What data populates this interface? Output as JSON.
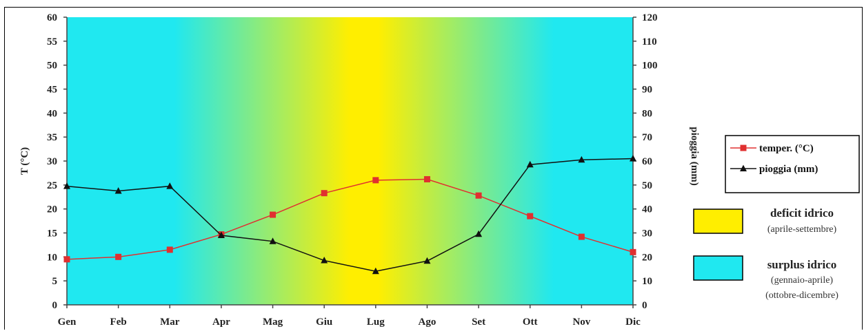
{
  "chart_data": {
    "type": "line",
    "title": "",
    "categories": [
      "Gen",
      "Feb",
      "Mar",
      "Apr",
      "Mag",
      "Giu",
      "Lug",
      "Ago",
      "Set",
      "Ott",
      "Nov",
      "Dic"
    ],
    "ylabel": "T (°C)",
    "y2label": "pioggia (mm)",
    "ylim": [
      0,
      60
    ],
    "y2lim": [
      0,
      120
    ],
    "yticks": [
      0,
      5,
      10,
      15,
      20,
      25,
      30,
      35,
      40,
      45,
      50,
      55,
      60
    ],
    "y2ticks": [
      0,
      10,
      20,
      30,
      40,
      50,
      60,
      70,
      80,
      90,
      100,
      110,
      120
    ],
    "series": [
      {
        "name": "temper. (°C)",
        "axis": "left",
        "marker": "square",
        "color": "#e03030",
        "values": [
          9.5,
          10,
          11.5,
          14.7,
          18.8,
          23.3,
          26,
          26.2,
          22.8,
          18.5,
          14.2,
          11
        ]
      },
      {
        "name": "pioggia (mm)",
        "axis": "right",
        "marker": "triangle",
        "color": "#111111",
        "values": [
          49.5,
          47.5,
          49.5,
          29,
          26.5,
          18.5,
          14,
          18.3,
          29.5,
          58.5,
          60.5,
          61
        ]
      }
    ],
    "background": {
      "deficit_color": "#ffee00",
      "surplus_color": "#20e8f0"
    },
    "legend": {
      "placement": "right",
      "items": [
        {
          "label": "temper. (°C)",
          "color": "#e03030",
          "marker": "square"
        },
        {
          "label": "pioggia (mm)",
          "color": "#111111",
          "marker": "triangle"
        }
      ]
    },
    "annotations": [
      {
        "title": "deficit idrico",
        "lines": [
          "(aprile-settembre)"
        ],
        "color": "#ffee00"
      },
      {
        "title": "surplus idrico",
        "lines": [
          "(gennaio-aprile)",
          "(ottobre-dicembre)"
        ],
        "color": "#20e8f0"
      }
    ]
  }
}
